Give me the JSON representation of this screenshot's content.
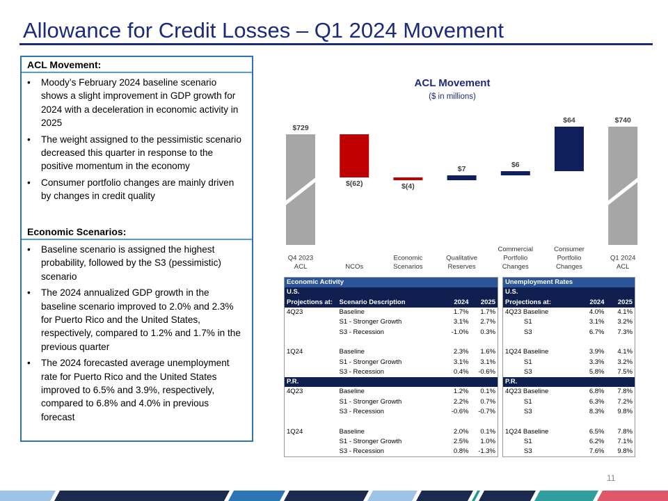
{
  "title": "Allowance for Credit Losses – Q1 2024 Movement",
  "summary": {
    "sections": [
      {
        "heading": "ACL Movement:",
        "bullets": [
          "Moody’s February 2024 baseline scenario shows a slight improvement in GDP growth for 2024 with a deceleration in economic activity in 2025",
          "The weight assigned to the pessimistic scenario decreased this quarter in response to the positive momentum in the economy",
          "Consumer portfolio changes are mainly driven by changes in credit quality"
        ]
      },
      {
        "heading": "Economic Scenarios:",
        "bullets": [
          "Baseline scenario is assigned the highest probability, followed by the S3 (pessimistic) scenario",
          "The 2024 annualized GDP growth in the baseline scenario improved to 2.0% and 2.3% for Puerto Rico and the United States, respectively, compared to 1.2% and 1.7% in the previous quarter",
          "The 2024 forecasted average unemployment rate for Puerto Rico and the United States improved to 6.5% and 3.9%, respectively, compared to 6.8% and 4.0% in previous forecast"
        ]
      }
    ]
  },
  "chart_data": {
    "type": "waterfall",
    "title": "ACL Movement",
    "subtitle": "($ in millions)",
    "categories": [
      [
        "Q4 2023",
        "ACL"
      ],
      [
        "NCOs"
      ],
      [
        "Economic",
        "Scenarios"
      ],
      [
        "Qualitative",
        "Reserves"
      ],
      [
        "Commercial",
        "Portfolio",
        "Changes"
      ],
      [
        "Consumer",
        "Portfolio",
        "Changes"
      ],
      [
        "Q1 2024",
        "ACL"
      ]
    ],
    "values": [
      729,
      -62,
      -4,
      7,
      6,
      64,
      740
    ],
    "value_labels": [
      "$729",
      "$(62)",
      "$(4)",
      "$7",
      "$6",
      "$64",
      "$740"
    ],
    "colors": {
      "total": "#a6a6a6",
      "increase": "#0e1f5b",
      "decrease": "#c00000"
    }
  },
  "tables": [
    {
      "title": "Economic Activity",
      "columns": [
        "Projections at:",
        "Scenario Description",
        "2024",
        "2025"
      ],
      "sections": [
        {
          "name": "U.S.",
          "groups": [
            {
              "period": "4Q23",
              "rows": [
                [
                  "Baseline",
                  "1.7%",
                  "1.7%"
                ],
                [
                  "S1 - Stronger Growth",
                  "3.1%",
                  "2.7%"
                ],
                [
                  "S3 - Recession",
                  "-1.0%",
                  "0.3%"
                ]
              ]
            },
            {
              "period": "1Q24",
              "rows": [
                [
                  "Baseline",
                  "2.3%",
                  "1.6%"
                ],
                [
                  "S1 - Stronger Growth",
                  "3.1%",
                  "3.1%"
                ],
                [
                  "S3 - Recession",
                  "0.4%",
                  "-0.6%"
                ]
              ]
            }
          ]
        },
        {
          "name": "P.R.",
          "groups": [
            {
              "period": "4Q23",
              "rows": [
                [
                  "Baseline",
                  "1.2%",
                  "0.1%"
                ],
                [
                  "S1 - Stronger Growth",
                  "2.2%",
                  "0.7%"
                ],
                [
                  "S3 - Recession",
                  "-0.6%",
                  "-0.7%"
                ]
              ]
            },
            {
              "period": "1Q24",
              "rows": [
                [
                  "Baseline",
                  "2.0%",
                  "0.1%"
                ],
                [
                  "S1 - Stronger Growth",
                  "2.5%",
                  "1.0%"
                ],
                [
                  "S3 - Recession",
                  "0.8%",
                  "-1.3%"
                ]
              ]
            }
          ]
        }
      ]
    },
    {
      "title": "Unemployment Rates",
      "columns": [
        "Projections at:",
        "2024",
        "2025"
      ],
      "sections": [
        {
          "name": "U.S.",
          "groups": [
            {
              "rows": [
                [
                  "4Q23 Baseline",
                  "4.0%",
                  "4.1%"
                ],
                [
                  "S1",
                  "3.1%",
                  "3.2%"
                ],
                [
                  "S3",
                  "6.7%",
                  "7.3%"
                ]
              ]
            },
            {
              "rows": [
                [
                  "1Q24 Baseline",
                  "3.9%",
                  "4.1%"
                ],
                [
                  "S1",
                  "3.3%",
                  "3.2%"
                ],
                [
                  "S3",
                  "5.8%",
                  "7.5%"
                ]
              ]
            }
          ]
        },
        {
          "name": "P.R.",
          "groups": [
            {
              "rows": [
                [
                  "4Q23 Baseline",
                  "6.8%",
                  "7.8%"
                ],
                [
                  "S1",
                  "6.3%",
                  "7.2%"
                ],
                [
                  "S3",
                  "8.3%",
                  "9.8%"
                ]
              ]
            },
            {
              "rows": [
                [
                  "1Q24 Baseline",
                  "6.5%",
                  "7.8%"
                ],
                [
                  "S1",
                  "6.2%",
                  "7.1%"
                ],
                [
                  "S3",
                  "7.6%",
                  "9.8%"
                ]
              ]
            }
          ]
        }
      ]
    }
  ],
  "page_number": "11"
}
